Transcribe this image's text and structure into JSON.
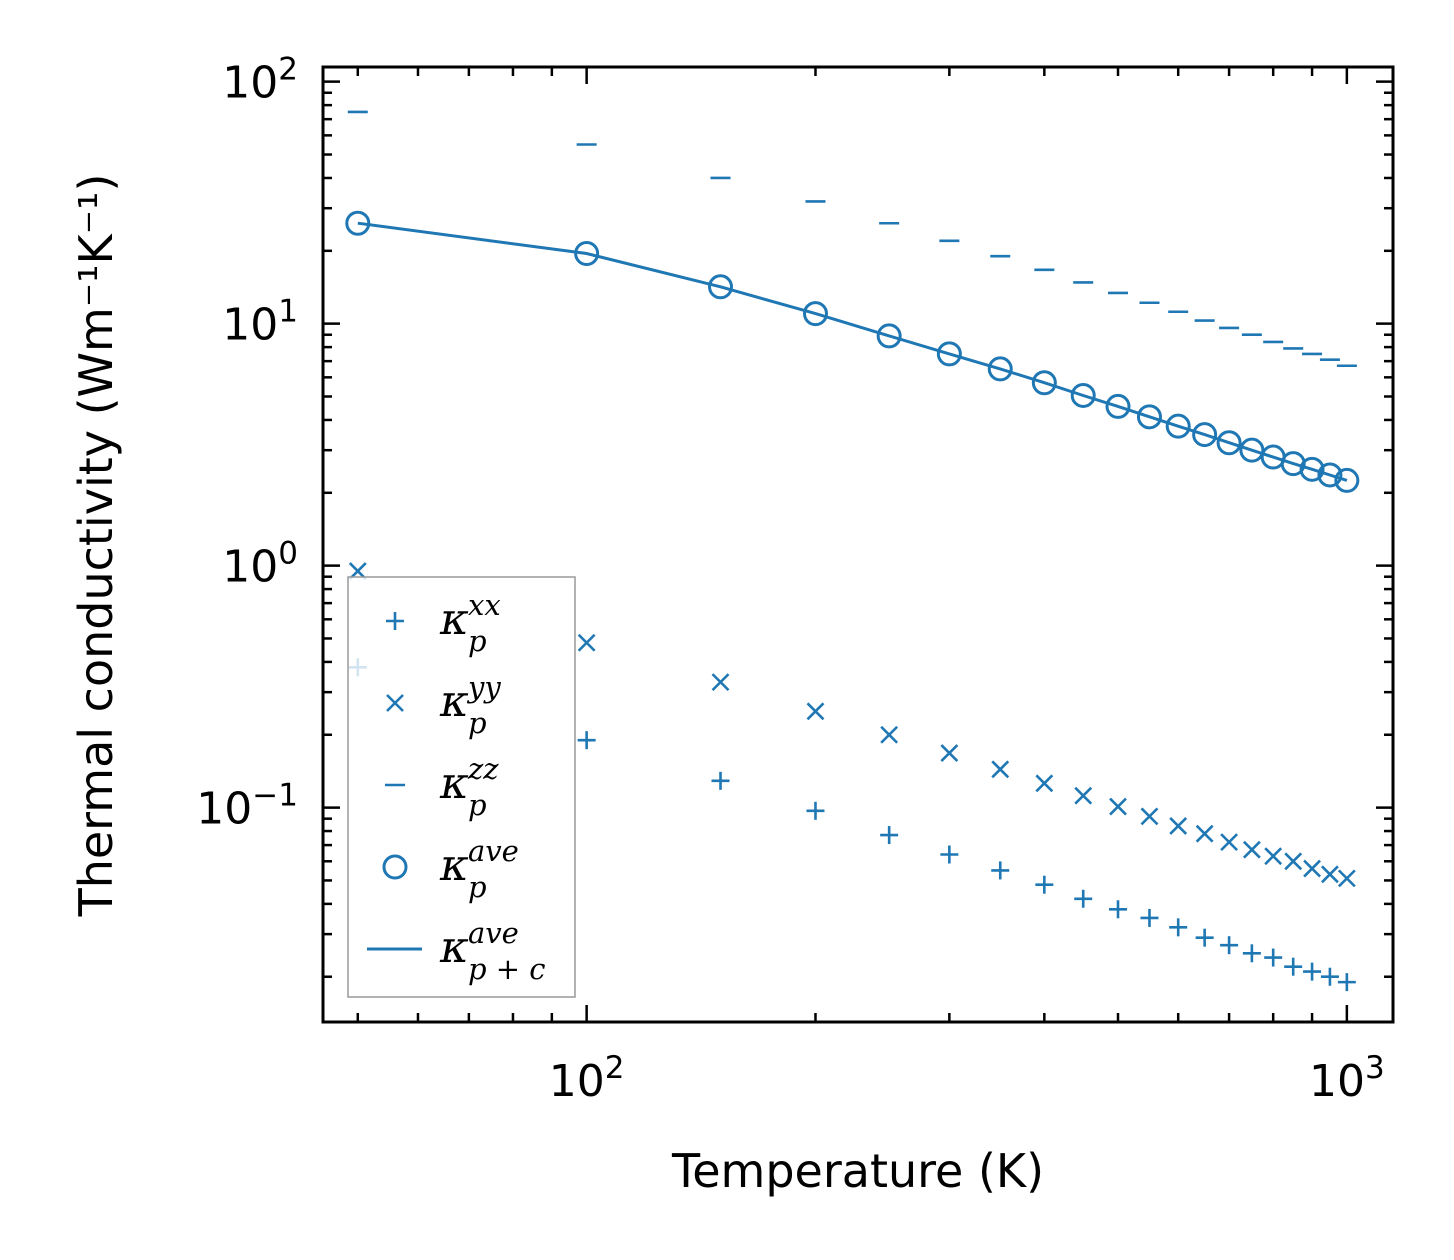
{
  "chart_data": {
    "type": "scatter",
    "title": "",
    "xlabel": "Temperature (K)",
    "ylabel": "Thermal conductivity (Wm⁻¹K⁻¹)",
    "xscale": "log",
    "yscale": "log",
    "xlim": [
      45,
      1150
    ],
    "ylim": [
      0.013,
      115
    ],
    "x_ticks": [
      {
        "value": 100,
        "base": "10",
        "exp": "2"
      },
      {
        "value": 1000,
        "base": "10",
        "exp": "3"
      }
    ],
    "y_ticks": [
      {
        "value": 100,
        "base": "10",
        "exp": "2"
      },
      {
        "value": 10,
        "base": "10",
        "exp": "1"
      },
      {
        "value": 1,
        "base": "10",
        "exp": "0"
      },
      {
        "value": 0.1,
        "base": "10",
        "exp": "−1"
      }
    ],
    "color": "#1f77b4",
    "x": [
      50,
      100,
      150,
      200,
      250,
      300,
      350,
      400,
      450,
      500,
      550,
      600,
      650,
      700,
      750,
      800,
      850,
      900,
      950,
      1000
    ],
    "series": [
      {
        "name": "kxx",
        "marker": "plus",
        "legend": {
          "symbol": "κ",
          "sup": "xx",
          "sub": "p"
        },
        "values": [
          0.38,
          0.19,
          0.129,
          0.097,
          0.077,
          0.064,
          0.055,
          0.048,
          0.042,
          0.038,
          0.035,
          0.032,
          0.029,
          0.027,
          0.025,
          0.024,
          0.022,
          0.021,
          0.02,
          0.019
        ]
      },
      {
        "name": "kyy",
        "marker": "x",
        "legend": {
          "symbol": "κ",
          "sup": "yy",
          "sub": "p"
        },
        "values": [
          0.95,
          0.48,
          0.33,
          0.25,
          0.2,
          0.168,
          0.144,
          0.126,
          0.112,
          0.101,
          0.092,
          0.084,
          0.078,
          0.072,
          0.067,
          0.063,
          0.06,
          0.056,
          0.053,
          0.051
        ]
      },
      {
        "name": "kzz",
        "marker": "hline",
        "legend": {
          "symbol": "κ",
          "sup": "zz",
          "sub": "p"
        },
        "values": [
          75,
          55,
          40,
          32,
          26,
          22,
          19,
          16.7,
          14.8,
          13.4,
          12.2,
          11.2,
          10.3,
          9.6,
          9.0,
          8.4,
          7.9,
          7.5,
          7.1,
          6.7
        ]
      },
      {
        "name": "kave",
        "marker": "circle",
        "legend": {
          "symbol": "κ",
          "sup": "ave",
          "sub": "p"
        },
        "values": [
          26,
          19.5,
          14.2,
          11.0,
          8.9,
          7.5,
          6.5,
          5.7,
          5.05,
          4.55,
          4.12,
          3.77,
          3.48,
          3.22,
          3.0,
          2.81,
          2.64,
          2.5,
          2.37,
          2.25
        ]
      },
      {
        "name": "kave_pc",
        "marker": "line",
        "legend": {
          "symbol": "κ",
          "sup": "ave",
          "sub": "p + c"
        },
        "values": [
          26,
          19.5,
          14.2,
          11.0,
          8.9,
          7.5,
          6.5,
          5.7,
          5.05,
          4.55,
          4.12,
          3.77,
          3.48,
          3.22,
          3.0,
          2.81,
          2.64,
          2.5,
          2.37,
          2.25
        ]
      }
    ],
    "legend_position": "lower-left"
  }
}
